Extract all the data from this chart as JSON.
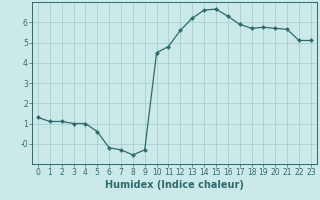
{
  "x": [
    0,
    1,
    2,
    3,
    4,
    5,
    6,
    7,
    8,
    9,
    10,
    11,
    12,
    13,
    14,
    15,
    16,
    17,
    18,
    19,
    20,
    21,
    22,
    23
  ],
  "y": [
    1.3,
    1.1,
    1.1,
    1.0,
    1.0,
    0.6,
    -0.2,
    -0.3,
    -0.55,
    -0.3,
    4.5,
    4.8,
    5.6,
    6.2,
    6.6,
    6.65,
    6.3,
    5.9,
    5.7,
    5.75,
    5.7,
    5.65,
    5.1,
    5.1
  ],
  "xlabel": "Humidex (Indice chaleur)",
  "line_color": "#2d6b6b",
  "marker": "D",
  "marker_size": 2.0,
  "bg_color": "#cce9e9",
  "grid_color": "#aacece",
  "xlim": [
    -0.5,
    23.5
  ],
  "ylim": [
    -1.0,
    7.0
  ],
  "yticks": [
    0,
    1,
    2,
    3,
    4,
    5,
    6
  ],
  "ytick_labels": [
    "-0",
    "1",
    "2",
    "3",
    "4",
    "5",
    "6"
  ],
  "xticks": [
    0,
    1,
    2,
    3,
    4,
    5,
    6,
    7,
    8,
    9,
    10,
    11,
    12,
    13,
    14,
    15,
    16,
    17,
    18,
    19,
    20,
    21,
    22,
    23
  ],
  "tick_fontsize": 5.5,
  "xlabel_fontsize": 7.0,
  "linewidth": 0.9
}
